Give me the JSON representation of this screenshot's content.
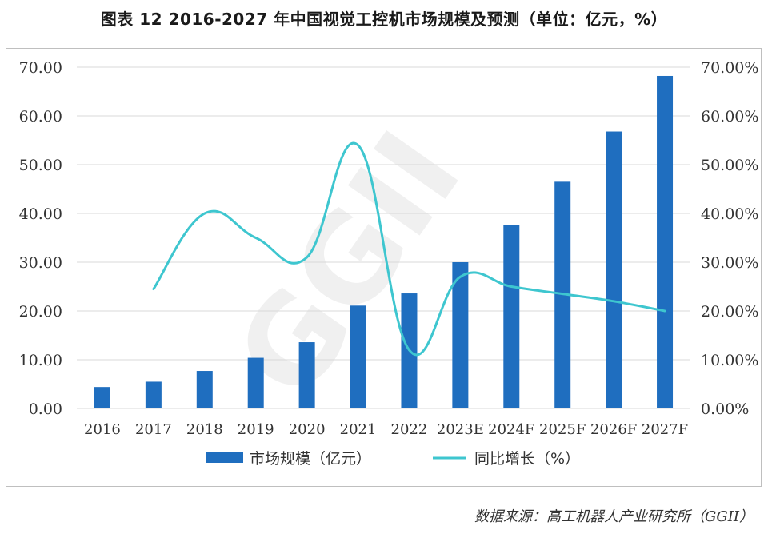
{
  "figure": {
    "title": "图表 12   2016-2027 年中国视觉工控机市场规模及预测（单位：亿元，%）",
    "source": "数据来源：高工机器人产业研究所（GGII）",
    "watermark": "GGII"
  },
  "chart_data": {
    "type": "bar+line",
    "title": "2016-2027 年中国视觉工控机市场规模及预测（单位：亿元，%）",
    "categories": [
      "2016",
      "2017",
      "2018",
      "2019",
      "2020",
      "2021",
      "2022",
      "2023E",
      "2024F",
      "2025F",
      "2026F",
      "2027F"
    ],
    "series": [
      {
        "name": "市场规模（亿元）",
        "type": "bar",
        "axis": "left",
        "color": "#1f6ebf",
        "values": [
          4.4,
          5.5,
          7.7,
          10.4,
          13.6,
          21.1,
          23.6,
          30.0,
          37.6,
          46.5,
          56.8,
          68.2
        ]
      },
      {
        "name": "同比增长（%）",
        "type": "line",
        "axis": "right",
        "color": "#3ec6cf",
        "values": [
          null,
          24.5,
          40.0,
          35.0,
          31.0,
          54.0,
          12.0,
          27.0,
          25.0,
          23.5,
          22.0,
          20.0
        ]
      }
    ],
    "y_left": {
      "min": 0,
      "max": 70,
      "step": 10,
      "tick_labels": [
        "0.00",
        "10.00",
        "20.00",
        "30.00",
        "40.00",
        "50.00",
        "60.00",
        "70.00"
      ]
    },
    "y_right": {
      "min": 0,
      "max": 70,
      "step": 10,
      "tick_labels": [
        "0.00%",
        "10.00%",
        "20.00%",
        "30.00%",
        "40.00%",
        "50.00%",
        "60.00%",
        "70.00%"
      ]
    },
    "grid": true,
    "legend_position": "bottom"
  }
}
